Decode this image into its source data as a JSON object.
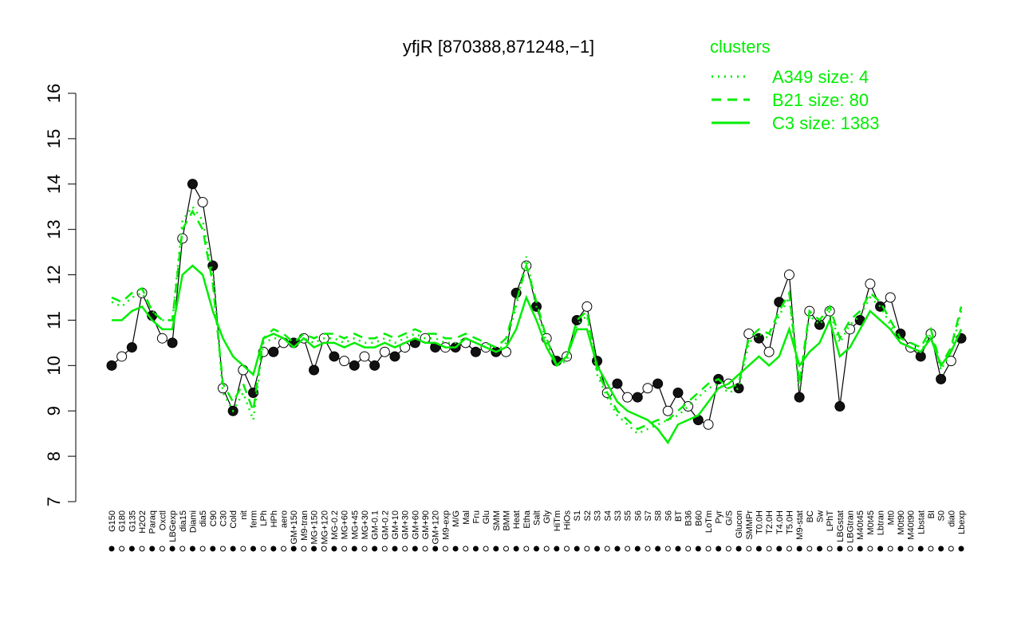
{
  "chart_data": {
    "type": "line",
    "title": "yfjR [870388,871248,−1]",
    "legend_title": "clusters",
    "categories": [
      "G150",
      "G180",
      "G135",
      "H2O2",
      "Paraq",
      "Oxctl",
      "LBGexp",
      "dia15",
      "Diami",
      "dia5",
      "C90",
      "C30",
      "Cold",
      "nit",
      "ferm",
      "LPh",
      "HPh",
      "aero",
      "GM+150",
      "M9-tran",
      "MG+150",
      "MG+120",
      "MG-0.2",
      "MG+60",
      "MG+45",
      "MG+30",
      "GM-0.1",
      "GM-0.2",
      "GM+10",
      "GM+30",
      "GM+60",
      "GM+90",
      "GM+120",
      "M9-exp",
      "M/G",
      "Mal",
      "Fru",
      "Glu",
      "SMM",
      "BMM",
      "Heat",
      "Etha",
      "Salt",
      "Gly",
      "HiTm",
      "HiOs",
      "S1",
      "S2",
      "S3",
      "S4",
      "S3",
      "S5",
      "S6",
      "S7",
      "S8",
      "S6",
      "BT",
      "B36",
      "B60",
      "LoTm",
      "Pyr",
      "G/S",
      "Glucon",
      "SMMPr",
      "T0.0H",
      "T2.0H",
      "T4.0H",
      "T5.0H",
      "M9-stat",
      "BC",
      "Sw",
      "LPhT",
      "LBGstat",
      "LBGtran",
      "M40t45",
      "M0t45",
      "Lbtran",
      "Mt0",
      "M0t90",
      "M40t90",
      "Lbstat",
      "BI",
      "S0",
      "dia0",
      "Lbexp"
    ],
    "series": [
      {
        "name": "expression",
        "color": "#000000",
        "style": "points",
        "values": [
          10.0,
          10.2,
          10.4,
          11.6,
          11.1,
          10.6,
          10.5,
          12.8,
          14.0,
          13.6,
          12.2,
          9.5,
          9.0,
          9.9,
          9.4,
          10.3,
          10.3,
          10.5,
          10.5,
          10.6,
          9.9,
          10.6,
          10.2,
          10.1,
          10.0,
          10.2,
          10.0,
          10.3,
          10.2,
          10.4,
          10.5,
          10.6,
          10.4,
          10.4,
          10.4,
          10.5,
          10.3,
          10.4,
          10.3,
          10.3,
          11.6,
          12.2,
          11.3,
          10.6,
          10.1,
          10.2,
          11.0,
          11.3,
          10.1,
          9.4,
          9.6,
          9.3,
          9.3,
          9.5,
          9.6,
          9.0,
          9.4,
          9.1,
          8.8,
          8.7,
          9.7,
          9.6,
          9.5,
          10.7,
          10.6,
          10.3,
          11.4,
          12.0,
          9.3,
          11.2,
          10.9,
          11.2,
          9.1,
          10.8,
          11.0,
          11.8,
          11.3,
          11.5,
          10.7,
          10.4,
          10.2,
          10.7,
          9.7,
          10.1,
          10.6
        ]
      },
      {
        "name": "A349 size: 4",
        "color": "#00ee00",
        "style": "dotted",
        "values": [
          11.4,
          11.3,
          11.5,
          11.6,
          11.2,
          11.0,
          11.0,
          13.2,
          13.5,
          13.2,
          12.0,
          9.4,
          9.0,
          9.4,
          8.8,
          10.5,
          10.6,
          10.6,
          10.4,
          10.6,
          10.5,
          10.6,
          10.6,
          10.5,
          10.6,
          10.5,
          10.5,
          10.6,
          10.5,
          10.6,
          10.7,
          10.6,
          10.6,
          10.5,
          10.5,
          10.6,
          10.5,
          10.4,
          10.3,
          10.5,
          11.3,
          12.4,
          11.3,
          10.5,
          10.0,
          10.1,
          10.9,
          11.1,
          9.8,
          9.3,
          8.9,
          8.7,
          8.5,
          8.6,
          8.7,
          8.8,
          8.9,
          9.1,
          9.3,
          9.5,
          9.6,
          9.4,
          9.5,
          10.5,
          10.7,
          10.6,
          11.1,
          11.5,
          9.5,
          11.1,
          10.9,
          11.2,
          10.5,
          10.9,
          11.1,
          11.5,
          11.3,
          10.9,
          10.5,
          10.4,
          10.3,
          10.7,
          9.9,
          10.3,
          11.2
        ]
      },
      {
        "name": "B21 size: 80",
        "color": "#00ee00",
        "style": "dashed",
        "values": [
          11.5,
          11.4,
          11.6,
          11.7,
          11.2,
          11.0,
          11.0,
          13.0,
          13.4,
          13.0,
          11.8,
          9.6,
          9.2,
          9.6,
          9.0,
          10.6,
          10.8,
          10.7,
          10.5,
          10.7,
          10.6,
          10.7,
          10.7,
          10.6,
          10.7,
          10.6,
          10.6,
          10.7,
          10.6,
          10.7,
          10.8,
          10.7,
          10.7,
          10.6,
          10.6,
          10.7,
          10.6,
          10.5,
          10.4,
          10.6,
          11.4,
          12.2,
          11.4,
          10.6,
          10.0,
          10.2,
          11.0,
          11.2,
          9.9,
          9.4,
          9.0,
          8.8,
          8.6,
          8.7,
          8.8,
          8.8,
          9.0,
          9.2,
          9.4,
          9.6,
          9.7,
          9.5,
          9.6,
          10.6,
          10.8,
          10.7,
          11.2,
          11.6,
          9.6,
          11.2,
          11.0,
          11.3,
          10.6,
          11.0,
          11.2,
          11.6,
          11.4,
          11.0,
          10.6,
          10.5,
          10.4,
          10.8,
          10.0,
          10.4,
          11.3
        ]
      },
      {
        "name": "C3 size: 1383",
        "color": "#00ee00",
        "style": "solid",
        "values": [
          11.0,
          11.0,
          11.2,
          11.3,
          11.0,
          10.8,
          10.8,
          12.0,
          12.2,
          12.0,
          11.2,
          10.6,
          10.2,
          10.0,
          9.8,
          10.6,
          10.7,
          10.6,
          10.4,
          10.6,
          10.4,
          10.5,
          10.5,
          10.4,
          10.5,
          10.4,
          10.4,
          10.5,
          10.4,
          10.5,
          10.6,
          10.5,
          10.5,
          10.4,
          10.4,
          10.6,
          10.5,
          10.4,
          10.3,
          10.4,
          10.8,
          11.5,
          11.0,
          10.4,
          10.0,
          10.2,
          10.8,
          10.8,
          10.0,
          9.6,
          9.2,
          9.0,
          8.9,
          8.8,
          8.6,
          8.3,
          8.7,
          8.8,
          8.9,
          9.2,
          9.5,
          9.6,
          9.8,
          10.0,
          10.2,
          10.0,
          10.2,
          10.8,
          10.0,
          10.3,
          10.5,
          11.0,
          10.2,
          10.4,
          10.8,
          11.2,
          11.0,
          10.8,
          10.5,
          10.4,
          10.3,
          10.6,
          10.0,
          10.3,
          10.8
        ]
      }
    ],
    "ylim": [
      7,
      16
    ],
    "yticks": [
      7,
      8,
      9,
      10,
      11,
      12,
      13,
      14,
      15,
      16
    ],
    "legend_position": "top-right"
  }
}
